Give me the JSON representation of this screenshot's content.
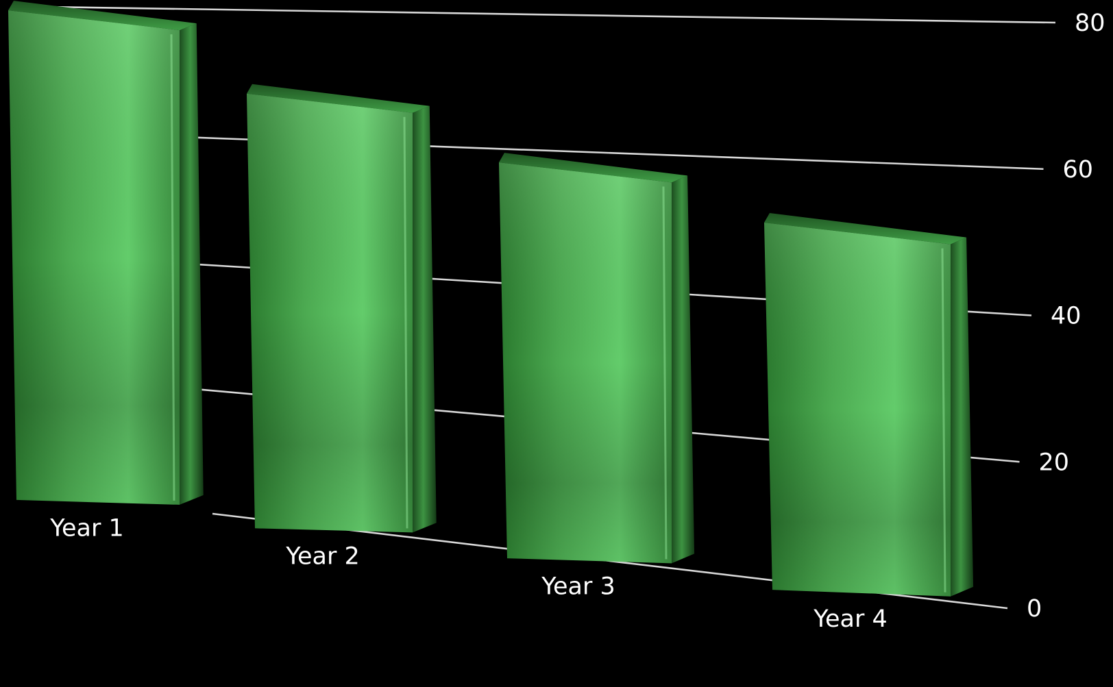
{
  "chart_data": {
    "type": "bar",
    "title": "",
    "xlabel": "",
    "ylabel": "",
    "categories": [
      "Year 1",
      "Year 2",
      "Year 3",
      "Year 4"
    ],
    "values": [
      78,
      66,
      57,
      50
    ],
    "ylim": [
      0,
      80
    ],
    "yticks": [
      "0",
      "20",
      "40",
      "60",
      "80"
    ],
    "grid": true,
    "style": "3d-perspective",
    "colors": {
      "background": "#000000",
      "bar_dark": "#1f5a22",
      "bar_mid": "#3f9a44",
      "bar_light": "#6fdc78",
      "grid": "#d8d8d8",
      "text": "#ffffff"
    }
  }
}
